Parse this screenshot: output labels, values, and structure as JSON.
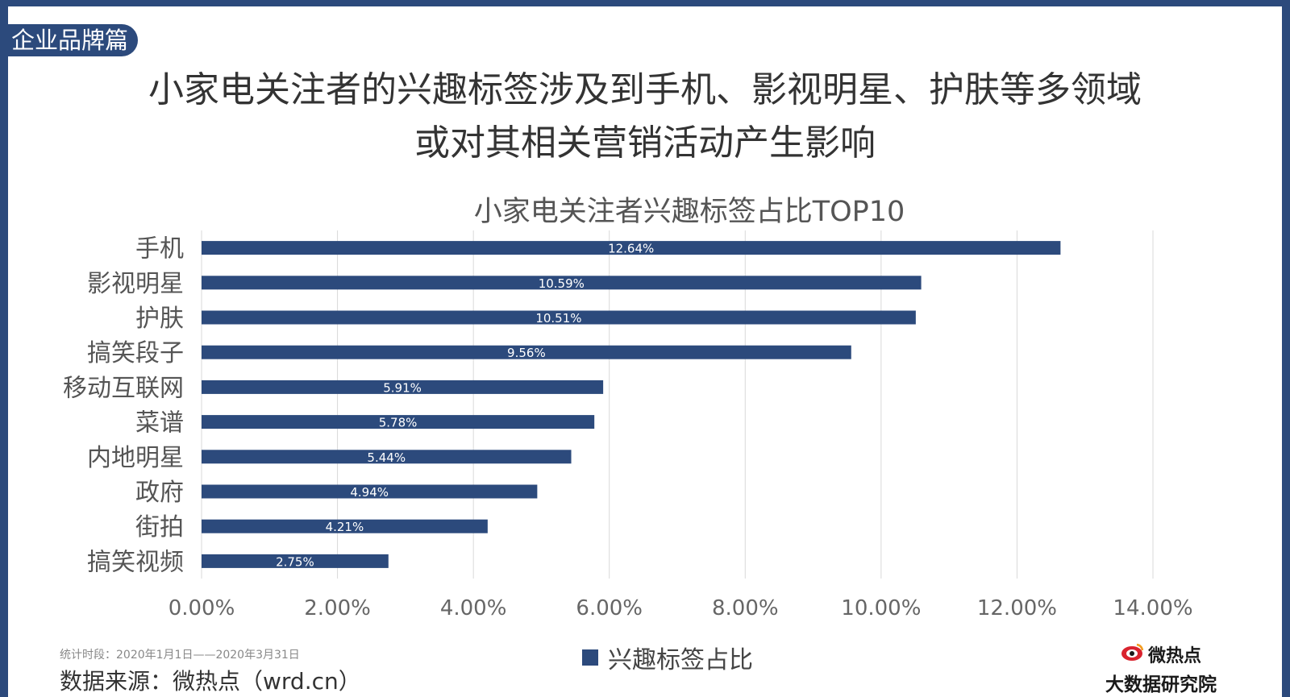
{
  "section_tag": "企业品牌篇",
  "headline": {
    "line1": "小家电关注者的兴趣标签涉及到手机、影视明星、护肤等多领域",
    "line2": "或对其相关营销活动产生影响"
  },
  "colors": {
    "bar": "#2c4a7c",
    "frame": "#2c4a7c",
    "grid": "#d9d9d9",
    "bar_label": "#ffffff"
  },
  "chart_data": {
    "type": "bar",
    "orientation": "horizontal",
    "title": "小家电关注者兴趣标签占比TOP10",
    "categories": [
      "手机",
      "影视明星",
      "护肤",
      "搞笑段子",
      "移动互联网",
      "菜谱",
      "内地明星",
      "政府",
      "街拍",
      "搞笑视频"
    ],
    "series": [
      {
        "name": "兴趣标签占比",
        "values": [
          12.64,
          10.59,
          10.51,
          9.56,
          5.91,
          5.78,
          5.44,
          4.94,
          4.21,
          2.75
        ],
        "labels": [
          "12.64%",
          "10.59%",
          "10.51%",
          "9.56%",
          "5.91%",
          "5.78%",
          "5.44%",
          "4.94%",
          "4.21%",
          "2.75%"
        ]
      }
    ],
    "xlim": [
      0,
      14
    ],
    "x_ticks": [
      "0.00%",
      "2.00%",
      "4.00%",
      "6.00%",
      "8.00%",
      "10.00%",
      "12.00%",
      "14.00%"
    ],
    "grid": true,
    "legend": "bottom"
  },
  "footer": {
    "period": "统计时段：2020年1月1日——2020年3月31日",
    "source": "数据来源：微热点（wrd.cn）",
    "brand_name": "微热点",
    "brand_sub": "大数据研究院",
    "brand_icon": "weibo-eye-icon"
  }
}
